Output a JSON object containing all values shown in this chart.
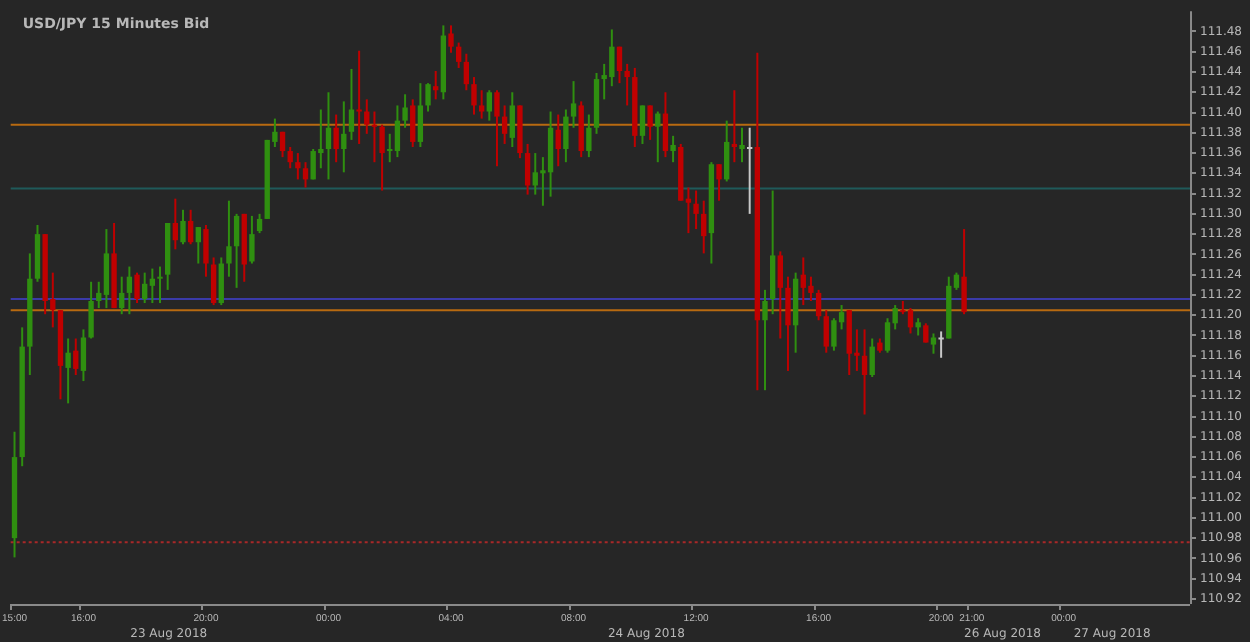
{
  "chart_data": {
    "type": "candlestick",
    "title": "USD/JPY 15 Minutes Bid",
    "categories": [
      "15:00",
      null,
      null,
      null,
      null,
      null,
      null,
      null,
      null,
      "16:00",
      null,
      null,
      null,
      null,
      null,
      null,
      null,
      null,
      null,
      null,
      null,
      null,
      null,
      null,
      null,
      "20:00",
      null,
      null,
      null,
      null,
      null,
      null,
      null,
      null,
      null,
      null,
      null,
      null,
      null,
      null,
      null,
      "00:00",
      null,
      null,
      null,
      null,
      null,
      null,
      null,
      null,
      null,
      null,
      null,
      null,
      null,
      null,
      null,
      "04:00",
      null,
      null,
      null,
      null,
      null,
      null,
      null,
      null,
      null,
      null,
      null,
      null,
      null,
      null,
      null,
      "08:00",
      null,
      null,
      null,
      null,
      null,
      null,
      null,
      null,
      null,
      null,
      null,
      null,
      null,
      null,
      null,
      "12:00",
      null,
      null,
      null,
      null,
      null,
      null,
      null,
      null,
      null,
      null,
      null,
      null,
      null,
      null,
      null,
      "16:00",
      null,
      null,
      null,
      null,
      null,
      null,
      null,
      null,
      null,
      null,
      null,
      null,
      null,
      null,
      null,
      "20:00",
      null,
      null,
      null,
      "21:00",
      null,
      null,
      null,
      null,
      null,
      null,
      null,
      null,
      null,
      null,
      null,
      "00:00",
      null,
      null,
      null,
      null,
      null,
      null,
      null,
      null,
      null,
      null,
      null,
      null,
      null,
      null,
      null,
      null
    ],
    "ohlc": [
      [
        110.98,
        111.085,
        110.961,
        111.06
      ],
      [
        111.06,
        111.188,
        111.051,
        111.169
      ],
      [
        111.169,
        111.261,
        111.141,
        111.236
      ],
      [
        111.236,
        111.289,
        111.233,
        111.28
      ],
      [
        111.28,
        111.28,
        111.201,
        111.214
      ],
      [
        111.216,
        111.242,
        111.188,
        111.205
      ],
      [
        111.205,
        111.205,
        111.117,
        111.15
      ],
      [
        111.148,
        111.177,
        111.113,
        111.163
      ],
      [
        111.165,
        111.177,
        111.141,
        111.147
      ],
      [
        111.145,
        111.186,
        111.135,
        111.178
      ],
      [
        111.178,
        111.233,
        111.177,
        111.214
      ],
      [
        111.214,
        111.233,
        111.207,
        111.222
      ],
      [
        111.22,
        111.285,
        111.207,
        111.261
      ],
      [
        111.261,
        111.291,
        111.207,
        111.207
      ],
      [
        111.207,
        111.238,
        111.201,
        111.222
      ],
      [
        111.222,
        111.248,
        111.201,
        111.238
      ],
      [
        111.24,
        111.242,
        111.212,
        111.216
      ],
      [
        111.216,
        111.242,
        111.212,
        111.231
      ],
      [
        111.229,
        111.246,
        111.212,
        111.236
      ],
      [
        111.236,
        111.248,
        111.212,
        111.238
      ],
      [
        111.24,
        111.291,
        111.225,
        111.291
      ],
      [
        111.291,
        111.315,
        111.265,
        111.274
      ],
      [
        111.272,
        111.304,
        111.27,
        111.293
      ],
      [
        111.293,
        111.304,
        111.27,
        111.272
      ],
      [
        111.272,
        111.287,
        111.251,
        111.287
      ],
      [
        111.285,
        111.289,
        111.238,
        111.251
      ],
      [
        111.25,
        111.257,
        111.21,
        111.212
      ],
      [
        111.212,
        111.257,
        111.21,
        111.251
      ],
      [
        111.251,
        111.313,
        111.238,
        111.268
      ],
      [
        111.268,
        111.3,
        111.227,
        111.298
      ],
      [
        111.3,
        111.3,
        111.233,
        111.25
      ],
      [
        111.253,
        111.298,
        111.251,
        111.28
      ],
      [
        111.283,
        111.3,
        111.281,
        111.295
      ],
      [
        111.295,
        111.373,
        111.295,
        111.373
      ],
      [
        111.371,
        111.394,
        111.366,
        111.381
      ],
      [
        111.381,
        111.381,
        111.356,
        111.362
      ],
      [
        111.362,
        111.366,
        111.345,
        111.351
      ],
      [
        111.351,
        111.36,
        111.334,
        111.345
      ],
      [
        111.345,
        111.351,
        111.326,
        111.334
      ],
      [
        111.334,
        111.364,
        111.334,
        111.362
      ],
      [
        111.36,
        111.403,
        111.345,
        111.364
      ],
      [
        111.364,
        111.42,
        111.334,
        111.385
      ],
      [
        111.385,
        111.398,
        111.351,
        111.364
      ],
      [
        111.364,
        111.411,
        111.341,
        111.379
      ],
      [
        111.381,
        111.443,
        111.373,
        111.403
      ],
      [
        111.403,
        111.461,
        111.369,
        111.401
      ],
      [
        111.401,
        111.413,
        111.379,
        111.388
      ],
      [
        111.388,
        111.401,
        111.351,
        111.386
      ],
      [
        111.386,
        111.388,
        111.323,
        111.36
      ],
      [
        111.362,
        111.379,
        111.351,
        111.364
      ],
      [
        111.362,
        111.407,
        111.356,
        111.392
      ],
      [
        111.392,
        111.418,
        111.385,
        111.405
      ],
      [
        111.407,
        111.413,
        111.366,
        111.371
      ],
      [
        111.371,
        111.429,
        111.366,
        111.407
      ],
      [
        111.407,
        111.429,
        111.401,
        111.428
      ],
      [
        111.426,
        111.441,
        111.413,
        111.422
      ],
      [
        111.42,
        111.486,
        111.413,
        111.476
      ],
      [
        111.478,
        111.486,
        111.459,
        111.465
      ],
      [
        111.465,
        111.469,
        111.444,
        111.45
      ],
      [
        111.45,
        111.458,
        111.422,
        111.428
      ],
      [
        111.428,
        111.435,
        111.398,
        111.407
      ],
      [
        111.407,
        111.422,
        111.394,
        111.401
      ],
      [
        111.401,
        111.422,
        111.392,
        111.42
      ],
      [
        111.42,
        111.422,
        111.347,
        111.396
      ],
      [
        111.396,
        111.407,
        111.369,
        111.379
      ],
      [
        111.375,
        111.42,
        111.366,
        111.407
      ],
      [
        111.407,
        111.407,
        111.355,
        111.36
      ],
      [
        111.36,
        111.369,
        111.319,
        111.328
      ],
      [
        111.328,
        111.36,
        111.319,
        111.341
      ],
      [
        111.34,
        111.356,
        111.308,
        111.343
      ],
      [
        111.341,
        111.401,
        111.317,
        111.385
      ],
      [
        111.383,
        111.398,
        111.347,
        111.364
      ],
      [
        111.364,
        111.403,
        111.351,
        111.396
      ],
      [
        111.396,
        111.431,
        111.385,
        111.409
      ],
      [
        111.407,
        111.411,
        111.356,
        111.362
      ],
      [
        111.362,
        111.398,
        111.356,
        111.385
      ],
      [
        111.385,
        111.439,
        111.379,
        111.433
      ],
      [
        111.433,
        111.448,
        111.413,
        111.437
      ],
      [
        111.435,
        111.482,
        111.426,
        111.465
      ],
      [
        111.465,
        111.465,
        111.429,
        111.441
      ],
      [
        111.441,
        111.448,
        111.407,
        111.435
      ],
      [
        111.435,
        111.444,
        111.366,
        111.377
      ],
      [
        111.377,
        111.407,
        111.369,
        111.407
      ],
      [
        111.407,
        111.407,
        111.373,
        111.386
      ],
      [
        111.386,
        111.401,
        111.351,
        111.399
      ],
      [
        111.399,
        111.42,
        111.356,
        111.362
      ],
      [
        111.362,
        111.377,
        111.351,
        111.368
      ],
      [
        111.366,
        111.369,
        111.313,
        111.313
      ],
      [
        111.315,
        111.326,
        111.281,
        111.311
      ],
      [
        111.31,
        111.323,
        111.285,
        111.3
      ],
      [
        111.3,
        111.313,
        111.261,
        111.278
      ],
      [
        111.281,
        111.351,
        111.251,
        111.349
      ],
      [
        111.349,
        111.349,
        111.313,
        111.334
      ],
      [
        111.334,
        111.392,
        111.332,
        111.371
      ],
      [
        111.369,
        111.422,
        111.351,
        111.366
      ],
      [
        111.364,
        111.385,
        111.351,
        111.368
      ],
      [
        111.366,
        111.385,
        111.3,
        111.366
      ],
      [
        111.366,
        111.459,
        111.126,
        111.195
      ],
      [
        111.195,
        111.225,
        111.126,
        111.214
      ],
      [
        111.216,
        111.323,
        111.201,
        111.259
      ],
      [
        111.259,
        111.263,
        111.177,
        111.227
      ],
      [
        111.227,
        111.238,
        111.145,
        111.19
      ],
      [
        111.19,
        111.242,
        111.163,
        111.236
      ],
      [
        111.24,
        111.257,
        111.21,
        111.227
      ],
      [
        111.229,
        111.238,
        111.214,
        111.222
      ],
      [
        111.222,
        111.225,
        111.195,
        111.199
      ],
      [
        111.199,
        111.205,
        111.163,
        111.169
      ],
      [
        111.169,
        111.197,
        111.165,
        111.195
      ],
      [
        111.193,
        111.21,
        111.186,
        111.203
      ],
      [
        111.205,
        111.205,
        111.141,
        111.162
      ],
      [
        111.163,
        111.186,
        111.145,
        111.16
      ],
      [
        111.16,
        111.186,
        111.102,
        111.141
      ],
      [
        111.141,
        111.177,
        111.139,
        111.169
      ],
      [
        111.173,
        111.177,
        111.163,
        111.165
      ],
      [
        111.165,
        111.197,
        111.163,
        111.193
      ],
      [
        111.192,
        111.21,
        111.186,
        111.207
      ],
      [
        111.205,
        111.214,
        111.201,
        111.204
      ],
      [
        111.205,
        111.207,
        111.182,
        111.188
      ],
      [
        111.188,
        111.197,
        111.18,
        111.193
      ],
      [
        111.19,
        111.192,
        111.173,
        111.173
      ],
      [
        111.171,
        111.182,
        111.162,
        111.178
      ],
      [
        111.178,
        111.184,
        111.158,
        111.178
      ],
      [
        111.177,
        111.238,
        111.177,
        111.229
      ],
      [
        111.227,
        111.242,
        111.225,
        111.24
      ],
      [
        111.238,
        111.285,
        111.201,
        111.203
      ],
      null,
      null,
      null,
      null,
      null,
      null,
      null,
      null,
      null,
      null,
      null,
      null,
      null,
      null,
      null,
      null,
      null,
      null,
      null,
      null,
      null,
      null,
      null,
      null,
      null,
      null,
      null,
      null,
      null
    ],
    "colors": [
      "#2f8f10",
      "#2f8f10",
      "#2f8f10",
      "#2f8f10",
      "#c00000",
      "#c00000",
      "#c00000",
      "#2f8f10",
      "#c00000",
      "#2f8f10",
      "#2f8f10",
      "#2f8f10",
      "#2f8f10",
      "#c00000",
      "#2f8f10",
      "#2f8f10",
      "#c00000",
      "#2f8f10",
      "#2f8f10",
      "#2f8f10",
      "#2f8f10",
      "#c00000",
      "#2f8f10",
      "#c00000",
      "#2f8f10",
      "#c00000",
      "#c00000",
      "#2f8f10",
      "#2f8f10",
      "#2f8f10",
      "#c00000",
      "#2f8f10",
      "#2f8f10",
      "#2f8f10",
      "#2f8f10",
      "#c00000",
      "#c00000",
      "#c00000",
      "#c00000",
      "#2f8f10",
      "#2f8f10",
      "#2f8f10",
      "#c00000",
      "#2f8f10",
      "#2f8f10",
      "#c00000",
      "#c00000",
      "#c00000",
      "#c00000",
      "#2f8f10",
      "#2f8f10",
      "#2f8f10",
      "#c00000",
      "#2f8f10",
      "#2f8f10",
      "#c00000",
      "#2f8f10",
      "#c00000",
      "#c00000",
      "#c00000",
      "#c00000",
      "#c00000",
      "#2f8f10",
      "#c00000",
      "#c00000",
      "#2f8f10",
      "#c00000",
      "#c00000",
      "#2f8f10",
      "#2f8f10",
      "#2f8f10",
      "#c00000",
      "#2f8f10",
      "#2f8f10",
      "#c00000",
      "#2f8f10",
      "#2f8f10",
      "#2f8f10",
      "#2f8f10",
      "#c00000",
      "#c00000",
      "#c00000",
      "#2f8f10",
      "#c00000",
      "#2f8f10",
      "#c00000",
      "#2f8f10",
      "#c00000",
      "#c00000",
      "#c00000",
      "#c00000",
      "#2f8f10",
      "#c00000",
      "#2f8f10",
      "#c00000",
      "#2f8f10",
      "#c8c8c8",
      "#c00000",
      "#2f8f10",
      "#2f8f10",
      "#c00000",
      "#c00000",
      "#2f8f10",
      "#c00000",
      "#c00000",
      "#c00000",
      "#c00000",
      "#2f8f10",
      "#2f8f10",
      "#c00000",
      "#c00000",
      "#c00000",
      "#2f8f10",
      "#c00000",
      "#2f8f10",
      "#2f8f10",
      "#c00000",
      "#c00000",
      "#2f8f10",
      "#c00000",
      "#2f8f10",
      "#c8c8c8",
      "#2f8f10",
      "#2f8f10",
      "#c00000",
      null,
      null,
      null,
      null,
      null,
      null,
      null,
      null,
      null,
      null,
      null,
      null,
      null,
      null,
      null,
      null,
      null,
      null,
      null,
      null,
      null,
      null,
      null,
      null,
      null,
      null,
      null,
      null,
      null
    ],
    "ylim": [
      110.915,
      111.5
    ],
    "yticks": [
      110.92,
      110.94,
      110.96,
      110.98,
      {
        "value": 111.0,
        "label": "111.00"
      },
      111.02,
      111.04,
      111.06,
      111.08,
      {
        "value": 111.1,
        "label": "111.10"
      },
      111.12,
      111.14,
      111.16,
      111.18,
      {
        "value": 111.2,
        "label": "111.20"
      },
      111.22,
      111.24,
      111.26,
      111.28,
      {
        "value": 111.3,
        "label": "111.30"
      },
      111.32,
      111.34,
      111.36,
      111.38,
      {
        "value": 111.4,
        "label": "111.40"
      },
      111.42,
      111.44,
      111.46,
      111.48
    ],
    "ref_lines": [
      {
        "axis": "y",
        "value": 111.388,
        "color": "#b86a10"
      },
      {
        "axis": "y",
        "value": 111.325,
        "color": "#1f5a5a"
      },
      {
        "axis": "y",
        "value": 111.216,
        "color": "#3a3aa8"
      },
      {
        "axis": "y",
        "value": 111.205,
        "color": "#b86a10"
      },
      {
        "axis": "y",
        "value": 110.976,
        "color": "#a82828",
        "line_style": "dotted"
      }
    ],
    "annotations": [
      "23 Aug 2018",
      "24 Aug 2018",
      "26 Aug 2018",
      "27 Aug 2018"
    ],
    "grid": false,
    "legend": false
  }
}
